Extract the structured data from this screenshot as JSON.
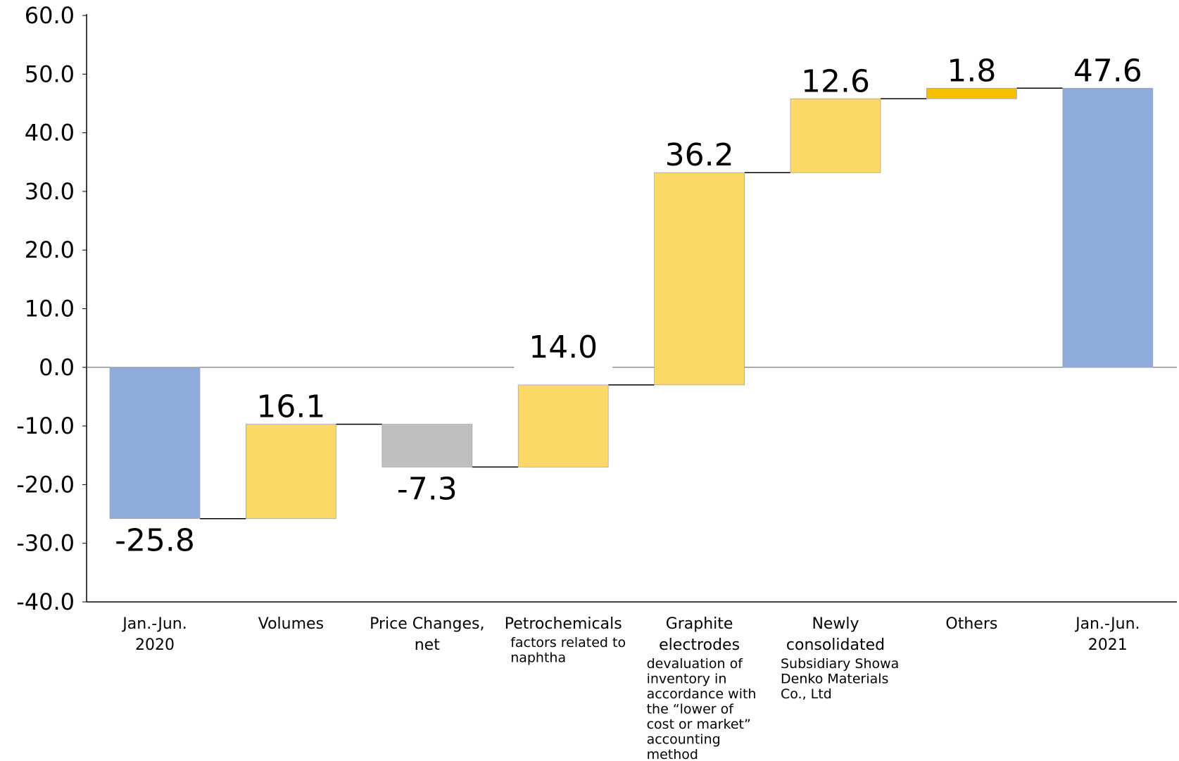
{
  "chart_data": {
    "type": "bar",
    "subtype": "waterfall",
    "title": "",
    "xlabel": "",
    "ylabel": "",
    "ylim": [
      -40,
      60
    ],
    "yticks": [
      "60.0",
      "50.0",
      "40.0",
      "30.0",
      "20.0",
      "10.0",
      "0.0",
      "-10.0",
      "-20.0",
      "-30.0",
      "-40.0"
    ],
    "grid": false,
    "colors": {
      "total": "#8FABDC",
      "increase": "#FCD966",
      "decrease": "#BFBFBF",
      "others": "#F6BE00"
    },
    "categories": [
      {
        "label": [
          "Jan.-Jun.",
          "2020"
        ],
        "sub": []
      },
      {
        "label": [
          "Volumes"
        ],
        "sub": []
      },
      {
        "label": [
          "Price Changes,",
          "net"
        ],
        "sub": []
      },
      {
        "label": [
          "Petrochemicals"
        ],
        "sub": [
          "factors related to",
          "naphtha"
        ]
      },
      {
        "label": [
          "Graphite",
          "electrodes"
        ],
        "sub": [
          "devaluation of",
          "inventory in",
          "accordance with",
          "the “lower of",
          "cost or market”",
          "accounting",
          "method"
        ]
      },
      {
        "label": [
          "Newly",
          "consolidated"
        ],
        "sub": [
          "Subsidiary Showa",
          "Denko Materials",
          "Co., Ltd"
        ]
      },
      {
        "label": [
          "Others"
        ],
        "sub": []
      },
      {
        "label": [
          "Jan.-Jun.",
          "2021"
        ],
        "sub": []
      }
    ],
    "bars": [
      {
        "kind": "total",
        "start": 0,
        "end": -25.8,
        "label": "-25.8"
      },
      {
        "kind": "increase",
        "start": -25.8,
        "end": -9.7,
        "label": "16.1"
      },
      {
        "kind": "decrease",
        "start": -9.7,
        "end": -17.0,
        "label": "-7.3"
      },
      {
        "kind": "increase",
        "start": -17.0,
        "end": -3.0,
        "label": "14.0"
      },
      {
        "kind": "increase",
        "start": -3.0,
        "end": 33.2,
        "label": "36.2"
      },
      {
        "kind": "increase",
        "start": 33.2,
        "end": 45.8,
        "label": "12.6"
      },
      {
        "kind": "others",
        "start": 45.8,
        "end": 47.6,
        "label": "1.8"
      },
      {
        "kind": "total",
        "start": 0,
        "end": 47.6,
        "label": "47.6"
      }
    ]
  }
}
